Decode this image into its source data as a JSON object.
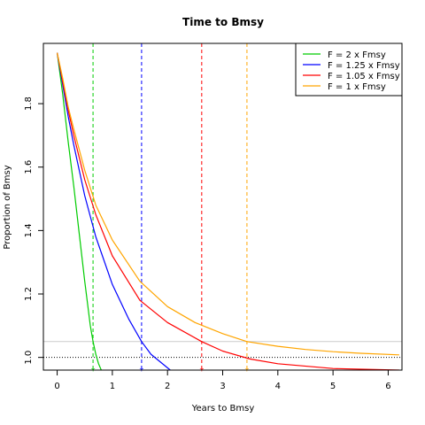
{
  "chart_data": {
    "type": "line",
    "title": "Time to Bmsy",
    "xlabel": "Years to Bmsy",
    "ylabel": "Proportion of Bmsy",
    "xlim": [
      -0.25,
      6.25
    ],
    "ylim": [
      0.96,
      1.99
    ],
    "x_ticks": [
      0,
      1,
      2,
      3,
      4,
      5,
      6
    ],
    "x_tick_labels": [
      "0",
      "1",
      "2",
      "3",
      "4",
      "5",
      "6"
    ],
    "y_ticks": [
      1.0,
      1.2,
      1.4,
      1.6,
      1.8
    ],
    "y_tick_labels": [
      "1.0",
      "1.2",
      "1.4",
      "1.6",
      "1.8"
    ],
    "legend_position": "top-right",
    "reference_lines": {
      "bmsy_line_y": 1.0,
      "bmsy_line_style": "dotted",
      "bmsy_line_color": "#000000",
      "threshold_line_y": 1.05,
      "threshold_line_color": "#cccccc"
    },
    "series": [
      {
        "name": "F = 2 x Fmsy",
        "color": "#00cc00",
        "x": [
          0,
          0.1,
          0.2,
          0.3,
          0.4,
          0.5,
          0.6,
          0.65,
          0.7,
          0.75,
          0.8
        ],
        "y": [
          1.96,
          1.83,
          1.68,
          1.54,
          1.39,
          1.24,
          1.1,
          1.05,
          1.01,
          0.98,
          0.96
        ],
        "marker_x": 0.65
      },
      {
        "name": "F = 1.25 x Fmsy",
        "color": "#0000ff",
        "x": [
          0,
          0.1,
          0.2,
          0.3,
          0.5,
          0.7,
          1.0,
          1.3,
          1.53,
          1.7,
          2.05
        ],
        "y": [
          1.96,
          1.86,
          1.76,
          1.67,
          1.51,
          1.38,
          1.23,
          1.12,
          1.05,
          1.01,
          0.96
        ],
        "marker_x": 1.53
      },
      {
        "name": "F = 1.05 x Fmsy",
        "color": "#ff0000",
        "x": [
          0,
          0.1,
          0.2,
          0.3,
          0.5,
          0.7,
          1.0,
          1.5,
          2.0,
          2.62,
          3.0,
          3.5,
          4.0,
          5.0,
          6.2
        ],
        "y": [
          1.96,
          1.87,
          1.78,
          1.7,
          1.56,
          1.45,
          1.32,
          1.18,
          1.11,
          1.05,
          1.02,
          0.995,
          0.98,
          0.965,
          0.96
        ],
        "marker_x": 2.62
      },
      {
        "name": "F = 1 x Fmsy",
        "color": "#ffa500",
        "x": [
          0,
          0.1,
          0.2,
          0.3,
          0.5,
          0.7,
          1.0,
          1.5,
          2.0,
          2.5,
          3.0,
          3.44,
          4.0,
          4.5,
          5.0,
          5.5,
          6.2
        ],
        "y": [
          1.96,
          1.88,
          1.79,
          1.72,
          1.59,
          1.48,
          1.37,
          1.24,
          1.16,
          1.11,
          1.075,
          1.05,
          1.035,
          1.025,
          1.018,
          1.013,
          1.008
        ],
        "marker_x": 3.44
      }
    ]
  }
}
